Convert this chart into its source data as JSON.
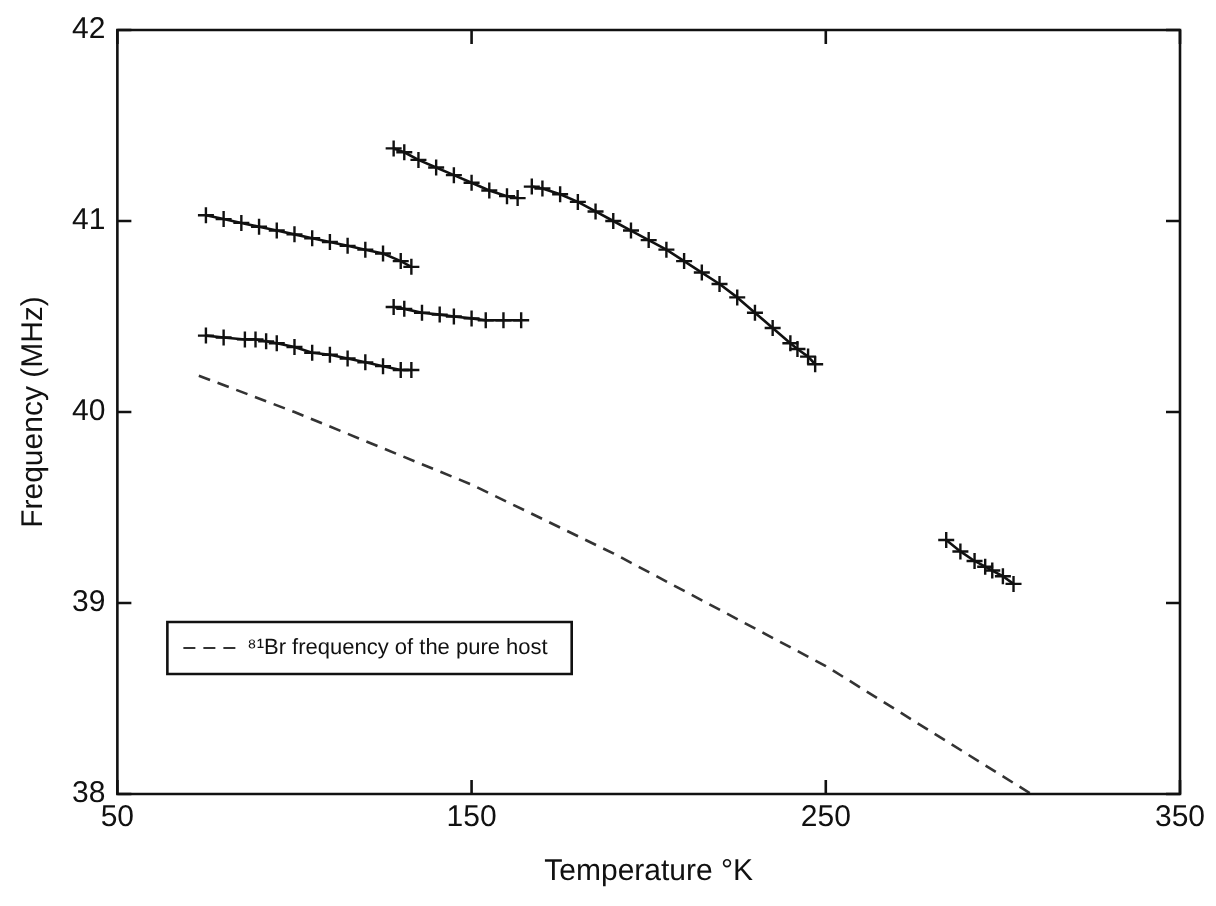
{
  "chart_data": {
    "type": "line",
    "xlabel": "Temperature °K",
    "ylabel": "Frequency (MHz)",
    "xlim": [
      50,
      350
    ],
    "xticks": [
      50,
      150,
      250,
      350
    ],
    "ylim": [
      38,
      42
    ],
    "yticks": [
      38,
      39,
      40,
      41,
      42
    ],
    "grid": false,
    "legend": "bottom left",
    "marker": "cross",
    "series": [
      {
        "color": "#111111",
        "x": [
          75,
          80,
          85,
          90,
          95,
          100,
          105,
          110,
          115,
          120,
          125,
          130,
          133
        ],
        "values": [
          41.03,
          41.01,
          40.99,
          40.97,
          40.95,
          40.93,
          40.91,
          40.89,
          40.87,
          40.85,
          40.83,
          40.79,
          40.76
        ]
      },
      {
        "color": "#111111",
        "x": [
          75,
          80,
          86,
          89,
          92,
          95,
          100,
          105,
          110,
          115,
          120,
          125,
          130,
          133
        ],
        "values": [
          40.4,
          40.39,
          40.38,
          40.38,
          40.37,
          40.36,
          40.34,
          40.31,
          40.3,
          40.28,
          40.26,
          40.24,
          40.22,
          40.22
        ]
      },
      {
        "color": "#111111",
        "x": [
          128,
          131,
          136,
          141,
          145,
          150,
          154,
          159,
          164
        ],
        "values": [
          40.55,
          40.54,
          40.52,
          40.51,
          40.5,
          40.49,
          40.48,
          40.48,
          40.48
        ]
      },
      {
        "color": "#111111",
        "x": [
          128,
          131,
          135,
          140,
          145,
          150,
          155,
          160,
          163
        ],
        "values": [
          41.38,
          41.36,
          41.32,
          41.28,
          41.24,
          41.2,
          41.16,
          41.13,
          41.12
        ]
      },
      {
        "color": "#111111",
        "x": [
          167,
          170,
          175,
          180,
          185,
          190,
          195,
          200,
          205,
          210,
          215,
          220,
          225,
          230,
          235,
          240,
          242,
          245,
          247
        ],
        "values": [
          41.18,
          41.17,
          41.14,
          41.1,
          41.05,
          41.0,
          40.95,
          40.9,
          40.85,
          40.79,
          40.73,
          40.67,
          40.6,
          40.52,
          40.44,
          40.36,
          40.33,
          40.29,
          40.25
        ]
      },
      {
        "color": "#111111",
        "x": [
          284,
          288,
          292,
          295,
          297,
          300,
          303
        ],
        "values": [
          39.33,
          39.27,
          39.22,
          39.19,
          39.17,
          39.14,
          39.1
        ]
      },
      {
        "name": "⁸¹Br frequency of the pure host",
        "color": "#333333",
        "line_style": "dashed",
        "marker": "none",
        "x": [
          73,
          100,
          150,
          190,
          250,
          308
        ],
        "values": [
          40.19,
          40.0,
          39.62,
          39.26,
          38.67,
          38.0
        ]
      }
    ]
  }
}
